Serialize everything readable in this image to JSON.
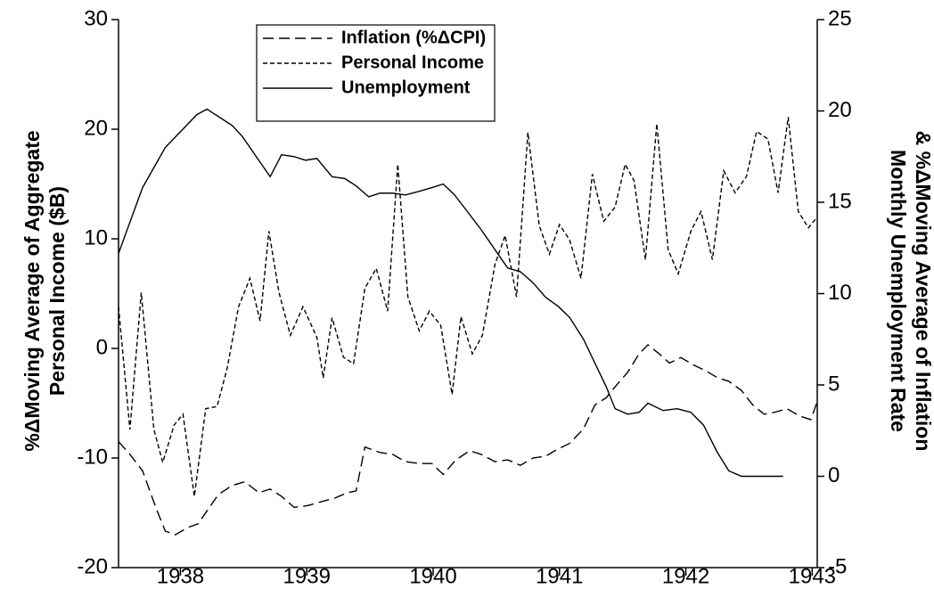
{
  "chart_data": {
    "type": "line",
    "ylabel": [
      "%ΔMoving Average of Aggregate",
      "Personal Income ($B)"
    ],
    "y2label": [
      "Monthly Unemployment Rate",
      "& %ΔMoving Average  of Inflation"
    ],
    "xlim": [
      1937.51,
      1943.04
    ],
    "xticks": [
      1938,
      1939,
      1940,
      1941,
      1942,
      1943
    ],
    "ylim": [
      -20,
      30
    ],
    "yticks": [
      -20,
      -10,
      0,
      10,
      20,
      30
    ],
    "y2lim": [
      -5,
      25
    ],
    "y2ticks": [
      -5,
      0,
      5,
      10,
      15,
      20,
      25
    ],
    "legend": "upper-left",
    "grid": false,
    "series": [
      {
        "name": "Inflation (%ΔCPI)",
        "color": "#000000",
        "dash": "long",
        "axis": "y2",
        "x": [
          1937.51,
          1937.6,
          1937.7,
          1937.81,
          1937.88,
          1937.96,
          1938.06,
          1938.14,
          1938.21,
          1938.3,
          1938.41,
          1938.51,
          1938.62,
          1938.71,
          1938.8,
          1938.9,
          1939.01,
          1939.11,
          1939.22,
          1939.32,
          1939.39,
          1939.46,
          1939.58,
          1939.68,
          1939.78,
          1939.89,
          1939.99,
          1940.08,
          1940.18,
          1940.29,
          1940.38,
          1940.49,
          1940.59,
          1940.69,
          1940.79,
          1940.89,
          1940.99,
          1941.08,
          1941.19,
          1941.28,
          1941.37,
          1941.44,
          1941.54,
          1941.63,
          1941.7,
          1941.79,
          1941.87,
          1941.96,
          1942.06,
          1942.15,
          1942.25,
          1942.34,
          1942.44,
          1942.53,
          1942.62,
          1942.7,
          1942.8,
          1942.9,
          1942.99,
          1943.04
        ],
        "values": [
          1.9,
          1.2,
          0.3,
          -1.8,
          -3.0,
          -3.2,
          -2.8,
          -2.6,
          -1.9,
          -1.0,
          -0.5,
          -0.3,
          -0.9,
          -0.7,
          -1.1,
          -1.7,
          -1.6,
          -1.4,
          -1.2,
          -0.9,
          -0.8,
          1.6,
          1.3,
          1.2,
          0.8,
          0.7,
          0.7,
          0.1,
          0.9,
          1.4,
          1.2,
          0.8,
          0.9,
          0.6,
          1.0,
          1.1,
          1.5,
          1.8,
          2.6,
          3.9,
          4.3,
          4.9,
          5.7,
          6.7,
          7.2,
          6.7,
          6.2,
          6.5,
          6.1,
          5.8,
          5.4,
          5.2,
          4.7,
          3.9,
          3.4,
          3.5,
          3.7,
          3.3,
          3.1,
          4.1
        ]
      },
      {
        "name": "Personal Income",
        "color": "#000000",
        "dash": "short",
        "axis": "y",
        "x": [
          1937.51,
          1937.6,
          1937.69,
          1937.79,
          1937.86,
          1937.95,
          1938.02,
          1938.11,
          1938.2,
          1938.29,
          1938.37,
          1938.46,
          1938.55,
          1938.63,
          1938.7,
          1938.78,
          1938.87,
          1938.97,
          1939.08,
          1939.13,
          1939.2,
          1939.29,
          1939.37,
          1939.46,
          1939.55,
          1939.64,
          1939.72,
          1939.8,
          1939.89,
          1939.97,
          1940.06,
          1940.15,
          1940.22,
          1940.31,
          1940.39,
          1940.49,
          1940.57,
          1940.66,
          1940.75,
          1940.84,
          1940.92,
          1941.0,
          1941.08,
          1941.17,
          1941.26,
          1941.35,
          1941.44,
          1941.52,
          1941.59,
          1941.68,
          1941.77,
          1941.86,
          1941.94,
          1942.04,
          1942.12,
          1942.21,
          1942.3,
          1942.39,
          1942.48,
          1942.56,
          1942.65,
          1942.73,
          1942.81,
          1942.89,
          1942.97,
          1943.04
        ],
        "values": [
          3.8,
          -7.4,
          5.1,
          -7.4,
          -10.4,
          -7.0,
          -6.0,
          -13.5,
          -5.5,
          -5.3,
          -1.8,
          3.8,
          6.4,
          2.5,
          10.7,
          5.1,
          1.2,
          3.8,
          1.0,
          -2.7,
          2.8,
          -0.8,
          -1.4,
          5.5,
          7.3,
          3.4,
          16.8,
          4.7,
          1.6,
          3.4,
          2.1,
          -4.2,
          2.9,
          -0.5,
          1.2,
          7.7,
          10.3,
          4.7,
          19.7,
          11.2,
          8.6,
          11.3,
          9.9,
          6.4,
          15.9,
          11.6,
          12.9,
          16.8,
          15.3,
          8.1,
          20.5,
          9.0,
          6.8,
          10.7,
          12.5,
          8.1,
          16.2,
          14.2,
          15.7,
          19.8,
          19.1,
          14.2,
          21.1,
          12.5,
          11.0,
          12.0
        ]
      },
      {
        "name": "Unemployment",
        "color": "#000000",
        "dash": "solid",
        "axis": "y2",
        "x": [
          1937.51,
          1937.7,
          1937.88,
          1938.13,
          1938.21,
          1938.41,
          1938.49,
          1938.62,
          1938.71,
          1938.8,
          1938.9,
          1938.99,
          1939.08,
          1939.2,
          1939.3,
          1939.39,
          1939.49,
          1939.58,
          1939.68,
          1939.78,
          1939.89,
          1939.99,
          1940.08,
          1940.17,
          1940.27,
          1940.38,
          1940.49,
          1940.59,
          1940.69,
          1940.79,
          1940.89,
          1940.99,
          1941.08,
          1941.19,
          1941.28,
          1941.37,
          1941.44,
          1941.54,
          1941.63,
          1941.7,
          1941.82,
          1941.93,
          1942.04,
          1942.14,
          1942.25,
          1942.34,
          1942.44,
          1942.77
        ],
        "values": [
          12.2,
          15.8,
          18.0,
          19.8,
          20.1,
          19.2,
          18.6,
          17.3,
          16.4,
          17.6,
          17.5,
          17.3,
          17.4,
          16.4,
          16.3,
          15.9,
          15.3,
          15.5,
          15.5,
          15.4,
          15.6,
          15.8,
          16.0,
          15.4,
          14.5,
          13.5,
          12.4,
          11.4,
          11.2,
          10.6,
          9.8,
          9.3,
          8.7,
          7.5,
          6.2,
          4.9,
          3.7,
          3.4,
          3.5,
          4.0,
          3.6,
          3.7,
          3.5,
          2.8,
          1.3,
          0.3,
          0,
          0
        ]
      }
    ]
  }
}
